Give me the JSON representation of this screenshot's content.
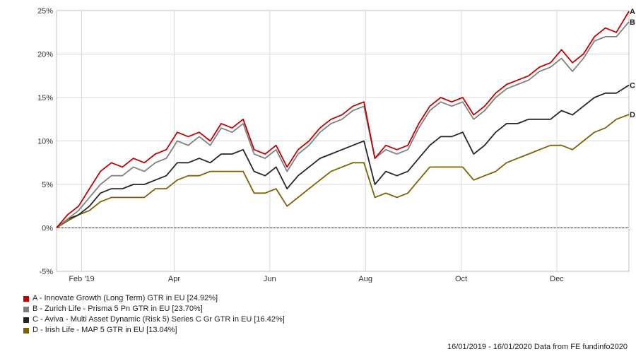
{
  "chart_data": {
    "type": "line",
    "y_ticks": [
      "25%",
      "20%",
      "15%",
      "10%",
      "5%",
      "0%",
      "-5%"
    ],
    "y_tick_values": [
      25,
      20,
      15,
      10,
      5,
      0,
      -5
    ],
    "ylim": [
      -5,
      25
    ],
    "x_ticks": [
      "Feb '19",
      "Apr",
      "Jun",
      "Aug",
      "Oct",
      "Dec"
    ],
    "x_range": [
      "2019-01-16",
      "2020-01-16"
    ],
    "grid": true,
    "legend_position": "bottom-left",
    "series": [
      {
        "name": "A - Innovate Growth (Long Term) GTR in EU [24.92%]",
        "end_label": "A",
        "color": "#c00000",
        "dates": [
          "2019-01-16",
          "2019-01-23",
          "2019-01-30",
          "2019-02-06",
          "2019-02-13",
          "2019-02-20",
          "2019-02-27",
          "2019-03-06",
          "2019-03-13",
          "2019-03-20",
          "2019-03-27",
          "2019-04-03",
          "2019-04-10",
          "2019-04-17",
          "2019-04-24",
          "2019-05-01",
          "2019-05-08",
          "2019-05-15",
          "2019-05-22",
          "2019-05-29",
          "2019-06-05",
          "2019-06-12",
          "2019-06-19",
          "2019-06-26",
          "2019-07-03",
          "2019-07-10",
          "2019-07-17",
          "2019-07-24",
          "2019-07-31",
          "2019-08-07",
          "2019-08-14",
          "2019-08-21",
          "2019-08-28",
          "2019-09-04",
          "2019-09-11",
          "2019-09-18",
          "2019-09-25",
          "2019-10-02",
          "2019-10-09",
          "2019-10-16",
          "2019-10-23",
          "2019-10-30",
          "2019-11-06",
          "2019-11-13",
          "2019-11-20",
          "2019-11-27",
          "2019-12-04",
          "2019-12-11",
          "2019-12-18",
          "2019-12-25",
          "2020-01-01",
          "2020-01-08",
          "2020-01-16"
        ],
        "values": [
          0,
          1.5,
          2.5,
          4.5,
          6.5,
          7.5,
          7.0,
          8.0,
          7.5,
          8.5,
          9.0,
          11.0,
          10.5,
          11.0,
          10.0,
          12.0,
          11.5,
          12.5,
          9.0,
          8.5,
          9.5,
          7.0,
          9.0,
          10.0,
          11.5,
          12.5,
          13.0,
          14.0,
          14.5,
          8.0,
          9.5,
          9.0,
          9.5,
          12.0,
          14.0,
          15.0,
          14.5,
          15.0,
          13.0,
          14.0,
          15.5,
          16.5,
          17.0,
          17.5,
          18.5,
          19.0,
          20.5,
          19.0,
          20.0,
          22.0,
          23.0,
          22.5,
          24.92
        ]
      },
      {
        "name": "B - Zurich Life - Prisma 5 Pn GTR in EU [23.70%]",
        "end_label": "B",
        "color": "#808080",
        "dates": [
          "2019-01-16",
          "2019-01-23",
          "2019-01-30",
          "2019-02-06",
          "2019-02-13",
          "2019-02-20",
          "2019-02-27",
          "2019-03-06",
          "2019-03-13",
          "2019-03-20",
          "2019-03-27",
          "2019-04-03",
          "2019-04-10",
          "2019-04-17",
          "2019-04-24",
          "2019-05-01",
          "2019-05-08",
          "2019-05-15",
          "2019-05-22",
          "2019-05-29",
          "2019-06-05",
          "2019-06-12",
          "2019-06-19",
          "2019-06-26",
          "2019-07-03",
          "2019-07-10",
          "2019-07-17",
          "2019-07-24",
          "2019-07-31",
          "2019-08-07",
          "2019-08-14",
          "2019-08-21",
          "2019-08-28",
          "2019-09-04",
          "2019-09-11",
          "2019-09-18",
          "2019-09-25",
          "2019-10-02",
          "2019-10-09",
          "2019-10-16",
          "2019-10-23",
          "2019-10-30",
          "2019-11-06",
          "2019-11-13",
          "2019-11-20",
          "2019-11-27",
          "2019-12-04",
          "2019-12-11",
          "2019-12-18",
          "2019-12-25",
          "2020-01-01",
          "2020-01-08",
          "2020-01-16"
        ],
        "values": [
          0,
          1.0,
          2.0,
          3.5,
          5.0,
          6.0,
          6.0,
          7.0,
          6.5,
          7.5,
          8.0,
          10.0,
          9.5,
          10.5,
          9.5,
          11.5,
          11.0,
          12.0,
          8.5,
          8.0,
          9.0,
          6.5,
          8.5,
          9.5,
          11.0,
          12.0,
          12.5,
          13.5,
          14.0,
          8.0,
          9.0,
          8.5,
          9.0,
          11.5,
          13.5,
          14.5,
          14.0,
          14.5,
          12.5,
          13.5,
          15.0,
          16.0,
          16.5,
          17.0,
          18.0,
          18.5,
          19.5,
          18.0,
          19.5,
          21.5,
          22.0,
          22.0,
          23.7
        ]
      },
      {
        "name": "C - Aviva - Multi Asset Dynamic (Risk 5) Series C Gr GTR in EU [16.42%]",
        "end_label": "C",
        "color": "#262626",
        "dates": [
          "2019-01-16",
          "2019-01-23",
          "2019-01-30",
          "2019-02-06",
          "2019-02-13",
          "2019-02-20",
          "2019-02-27",
          "2019-03-06",
          "2019-03-13",
          "2019-03-20",
          "2019-03-27",
          "2019-04-03",
          "2019-04-10",
          "2019-04-17",
          "2019-04-24",
          "2019-05-01",
          "2019-05-08",
          "2019-05-15",
          "2019-05-22",
          "2019-05-29",
          "2019-06-05",
          "2019-06-12",
          "2019-06-19",
          "2019-06-26",
          "2019-07-03",
          "2019-07-10",
          "2019-07-17",
          "2019-07-24",
          "2019-07-31",
          "2019-08-07",
          "2019-08-14",
          "2019-08-21",
          "2019-08-28",
          "2019-09-04",
          "2019-09-11",
          "2019-09-18",
          "2019-09-25",
          "2019-10-02",
          "2019-10-09",
          "2019-10-16",
          "2019-10-23",
          "2019-10-30",
          "2019-11-06",
          "2019-11-13",
          "2019-11-20",
          "2019-11-27",
          "2019-12-04",
          "2019-12-11",
          "2019-12-18",
          "2019-12-25",
          "2020-01-01",
          "2020-01-08",
          "2020-01-16"
        ],
        "values": [
          0,
          1.0,
          1.5,
          2.5,
          4.0,
          4.5,
          4.5,
          5.0,
          5.0,
          5.5,
          6.0,
          7.5,
          7.5,
          8.0,
          7.5,
          8.5,
          8.5,
          9.0,
          6.5,
          6.0,
          7.0,
          4.5,
          6.0,
          7.0,
          8.0,
          8.5,
          9.0,
          9.5,
          10.0,
          5.0,
          6.5,
          6.0,
          6.5,
          8.0,
          9.5,
          10.5,
          10.5,
          11.0,
          8.5,
          9.5,
          11.0,
          12.0,
          12.0,
          12.5,
          12.5,
          12.5,
          13.5,
          13.0,
          14.0,
          15.0,
          15.5,
          15.5,
          16.42
        ]
      },
      {
        "name": "D - Irish Life - MAP 5 GTR in EU [13.04%]",
        "end_label": "D",
        "color": "#7f6000",
        "dates": [
          "2019-01-16",
          "2019-01-23",
          "2019-01-30",
          "2019-02-06",
          "2019-02-13",
          "2019-02-20",
          "2019-02-27",
          "2019-03-06",
          "2019-03-13",
          "2019-03-20",
          "2019-03-27",
          "2019-04-03",
          "2019-04-10",
          "2019-04-17",
          "2019-04-24",
          "2019-05-01",
          "2019-05-08",
          "2019-05-15",
          "2019-05-22",
          "2019-05-29",
          "2019-06-05",
          "2019-06-12",
          "2019-06-19",
          "2019-06-26",
          "2019-07-03",
          "2019-07-10",
          "2019-07-17",
          "2019-07-24",
          "2019-07-31",
          "2019-08-07",
          "2019-08-14",
          "2019-08-21",
          "2019-08-28",
          "2019-09-04",
          "2019-09-11",
          "2019-09-18",
          "2019-09-25",
          "2019-10-02",
          "2019-10-09",
          "2019-10-16",
          "2019-10-23",
          "2019-10-30",
          "2019-11-06",
          "2019-11-13",
          "2019-11-20",
          "2019-11-27",
          "2019-12-04",
          "2019-12-11",
          "2019-12-18",
          "2019-12-25",
          "2020-01-01",
          "2020-01-08",
          "2020-01-16"
        ],
        "values": [
          0,
          0.8,
          1.5,
          2.0,
          3.0,
          3.5,
          3.5,
          3.5,
          3.5,
          4.5,
          4.5,
          5.5,
          6.0,
          6.0,
          6.5,
          6.5,
          6.5,
          6.5,
          4.0,
          4.0,
          4.5,
          2.5,
          3.5,
          4.5,
          5.5,
          6.5,
          7.0,
          7.5,
          7.5,
          3.5,
          4.0,
          3.5,
          4.0,
          5.5,
          7.0,
          7.0,
          7.0,
          7.0,
          5.5,
          6.0,
          6.5,
          7.5,
          8.0,
          8.5,
          9.0,
          9.5,
          9.5,
          9.0,
          10.0,
          11.0,
          11.5,
          12.5,
          13.04
        ]
      }
    ],
    "zero_line": true
  },
  "footer": "16/01/2019 - 16/01/2020 Data from FE fundinfo2020"
}
